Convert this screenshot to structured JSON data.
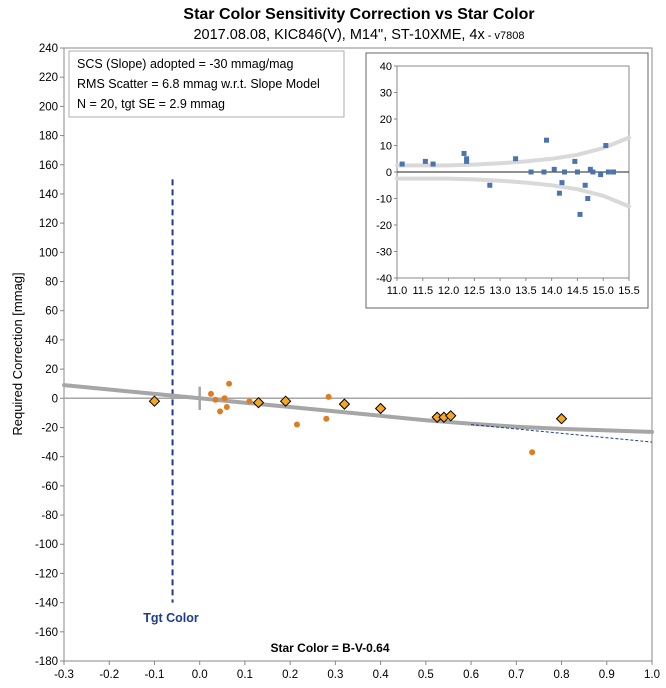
{
  "header": {
    "title": "Star Color Sensitivity Correction vs Star Color",
    "subtitle": "2017.08.08, KIC846(V), M14\", ST-10XME, 4x",
    "subtitle_sep": " - ",
    "version": "v7808"
  },
  "info_box": {
    "line1": "SCS (Slope) adopted  =  -30 mmag/mag",
    "line2": "RMS Scatter = 6.8 mmag w.r.t. Slope Model",
    "line3": "N = 20,  tgt SE = 2.9 mmag"
  },
  "tgt_color_label": "Tgt Color",
  "colors": {
    "dots": "#e07b1e",
    "diamond_fill": "#f5a623",
    "diamond_edge": "#000000",
    "model_curve": "#a6a6a6",
    "slope_line": "#1f3b8f",
    "tgt_line": "#1f3b8f",
    "inset_squares": "#4a74b0",
    "inset_envelope": "#d9d9d9"
  },
  "chart_data": [
    {
      "type": "scatter",
      "title": "Star Color Sensitivity Correction vs Star Color",
      "xlabel": "Star Color = B-V-0.64",
      "ylabel": "Required Correction [mmag]",
      "xlim": [
        -0.3,
        1.0
      ],
      "ylim": [
        -180,
        240
      ],
      "x_ticks": [
        "-0.3",
        "-0.2",
        "-0.1",
        "0.0",
        "0.1",
        "0.2",
        "0.3",
        "0.4",
        "0.5",
        "0.6",
        "0.7",
        "0.8",
        "0.9",
        "1.0"
      ],
      "y_ticks": [
        "240",
        "220",
        "200",
        "180",
        "160",
        "140",
        "120",
        "100",
        "80",
        "60",
        "40",
        "20",
        "0",
        "-20",
        "-40",
        "-60",
        "-80",
        "-100",
        "-120",
        "-140",
        "-160",
        "-180"
      ],
      "grid": false,
      "series": [
        {
          "marker": "dot",
          "x": [
            0.025,
            0.035,
            0.045,
            0.055,
            0.06,
            0.065,
            0.11,
            0.215,
            0.28,
            0.285,
            0.735
          ],
          "y": [
            3,
            -1,
            -9,
            0,
            -6,
            10,
            -2,
            -18,
            -14,
            1,
            -37
          ]
        },
        {
          "marker": "diamond",
          "x": [
            -0.1,
            0.13,
            0.19,
            0.32,
            0.4,
            0.525,
            0.54,
            0.555,
            0.8
          ],
          "y": [
            -2,
            -3,
            -2,
            -4,
            -7,
            -13,
            -13,
            -12,
            -14
          ]
        },
        {
          "marker": "curve",
          "x": [
            -0.3,
            -0.2,
            -0.1,
            0.0,
            0.1,
            0.2,
            0.3,
            0.4,
            0.5,
            0.6,
            0.7,
            0.8,
            0.9,
            1.0
          ],
          "y": [
            9,
            6,
            3,
            0,
            -3,
            -6,
            -9,
            -12,
            -15,
            -17.5,
            -19.5,
            -21,
            -22,
            -23
          ]
        },
        {
          "marker": "dashed-line",
          "x": [
            0.6,
            1.0
          ],
          "y": [
            -18,
            -30
          ]
        }
      ],
      "tgt_color_x": -0.06,
      "tgt_line_y": [
        -140,
        150
      ]
    },
    {
      "type": "scatter",
      "xlim": [
        11.0,
        15.5
      ],
      "ylim": [
        -40,
        40
      ],
      "x_ticks": [
        "11.0",
        "11.5",
        "12.0",
        "12.5",
        "13.0",
        "13.5",
        "14.0",
        "14.5",
        "15.0",
        "15.5"
      ],
      "y_ticks": [
        "40",
        "30",
        "20",
        "10",
        "0",
        "-10",
        "-20",
        "-30",
        "-40"
      ],
      "series": [
        {
          "marker": "square",
          "x": [
            11.1,
            11.55,
            11.7,
            12.3,
            12.35,
            12.35,
            12.8,
            13.3,
            13.6,
            13.85,
            13.9,
            14.05,
            14.15,
            14.2,
            14.25,
            14.45,
            14.5,
            14.55,
            14.65,
            14.7,
            14.75,
            14.8,
            14.95,
            15.05,
            15.1,
            15.2
          ],
          "y": [
            3,
            4,
            3,
            7,
            5,
            4,
            -5,
            5,
            0,
            0,
            12,
            1,
            -8,
            -4,
            0,
            4,
            0,
            -16,
            -5,
            -10,
            1,
            0,
            -1,
            10,
            0,
            0
          ]
        },
        {
          "marker": "envelope",
          "x": [
            11.0,
            11.5,
            12.0,
            12.5,
            13.0,
            13.5,
            14.0,
            14.5,
            15.0,
            15.5
          ],
          "y_upper": [
            2.5,
            2.5,
            2.5,
            2.8,
            3.3,
            4,
            5,
            6.5,
            9,
            13
          ],
          "y_lower": [
            -2.5,
            -2.5,
            -2.5,
            -2.8,
            -3.3,
            -4,
            -5,
            -6.5,
            -9,
            -13
          ]
        }
      ]
    }
  ]
}
